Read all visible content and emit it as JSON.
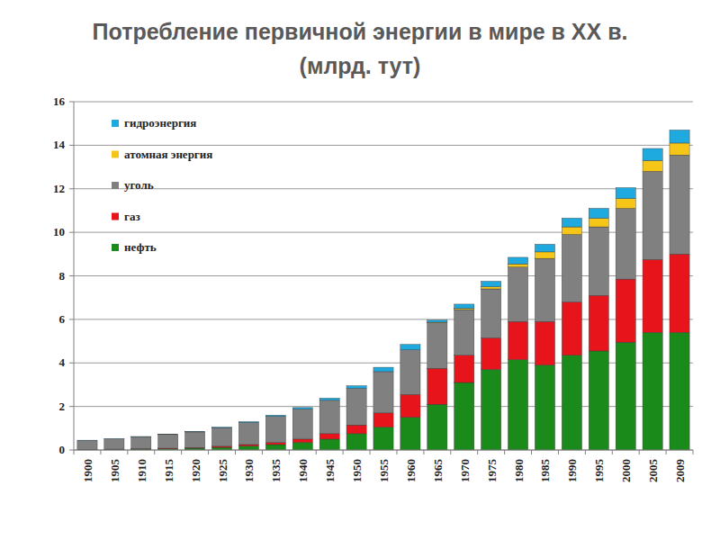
{
  "chart_data": {
    "type": "bar",
    "stacked": true,
    "title": "Потребление первичной энергии в мире в XX в.",
    "subtitle": "(млрд. тут)",
    "categories": [
      "1900",
      "1905",
      "1910",
      "1915",
      "1920",
      "1925",
      "1930",
      "1935",
      "1940",
      "1945",
      "1950",
      "1955",
      "1960",
      "1965",
      "1970",
      "1975",
      "1980",
      "1985",
      "1990",
      "1995",
      "2000",
      "2005",
      "2009"
    ],
    "series": [
      {
        "name": "нефть",
        "color": "#1a8a1a",
        "values": [
          0.02,
          0.03,
          0.04,
          0.05,
          0.08,
          0.12,
          0.18,
          0.25,
          0.35,
          0.5,
          0.75,
          1.05,
          1.5,
          2.1,
          3.1,
          3.7,
          4.15,
          3.9,
          4.35,
          4.55,
          4.95,
          5.4,
          5.4
        ]
      },
      {
        "name": "газ",
        "color": "#e8141b",
        "values": [
          0.01,
          0.01,
          0.02,
          0.03,
          0.03,
          0.05,
          0.07,
          0.09,
          0.15,
          0.25,
          0.4,
          0.65,
          1.05,
          1.65,
          1.25,
          1.45,
          1.75,
          2.0,
          2.45,
          2.55,
          2.9,
          3.35,
          3.6
        ]
      },
      {
        "name": "уголь",
        "color": "#808080",
        "values": [
          0.41,
          0.47,
          0.55,
          0.63,
          0.72,
          0.85,
          1.01,
          1.2,
          1.38,
          1.53,
          1.68,
          1.9,
          2.05,
          2.1,
          2.1,
          2.25,
          2.5,
          2.9,
          3.1,
          3.15,
          3.25,
          4.05,
          4.55
        ]
      },
      {
        "name": "атомная энергия",
        "color": "#f5c518",
        "values": [
          0,
          0,
          0,
          0,
          0,
          0,
          0,
          0,
          0,
          0,
          0,
          0,
          0,
          0.02,
          0.05,
          0.1,
          0.15,
          0.3,
          0.35,
          0.4,
          0.45,
          0.5,
          0.55
        ]
      },
      {
        "name": "гидроэнергия",
        "color": "#1eaadf",
        "values": [
          0.01,
          0.01,
          0.01,
          0.01,
          0.02,
          0.03,
          0.04,
          0.06,
          0.07,
          0.1,
          0.12,
          0.2,
          0.25,
          0.1,
          0.2,
          0.25,
          0.3,
          0.35,
          0.4,
          0.45,
          0.5,
          0.55,
          0.6
        ]
      }
    ],
    "ylim": [
      0,
      16
    ],
    "yticks": [
      0,
      2,
      4,
      6,
      8,
      10,
      12,
      14,
      16
    ],
    "grid": true,
    "legend": "top-left"
  }
}
